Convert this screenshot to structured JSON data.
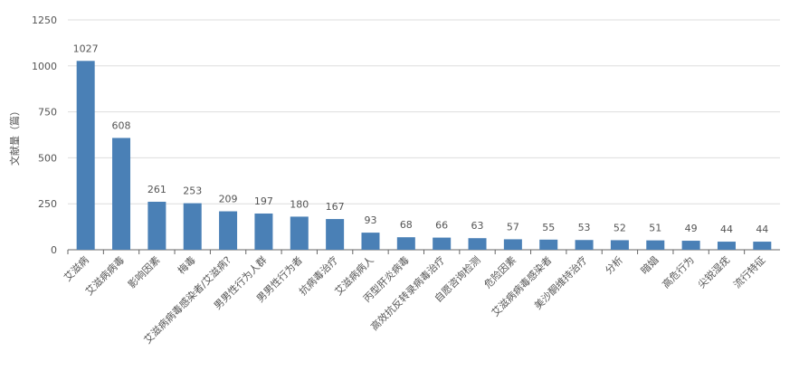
{
  "chart_data": {
    "type": "bar",
    "y_label": "文献量（篇）",
    "categories": [
      "艾滋病",
      "艾滋病病毒",
      "影响因素",
      "梅毒",
      "艾滋病病毒感染者/艾滋病?",
      "男男性行为人群",
      "男男性行为者",
      "抗病毒治疗",
      "艾滋病病人",
      "丙型肝炎病毒",
      "高效抗反转录病毒治疗",
      "自愿咨询检测",
      "危险因素",
      "艾滋病病毒感染者",
      "美沙酮维持治疗",
      "分析",
      "暗娼",
      "高危行为",
      "尖锐湿疣",
      "流行特征"
    ],
    "values": [
      1027,
      608,
      261,
      253,
      209,
      197,
      180,
      167,
      93,
      68,
      66,
      63,
      57,
      55,
      53,
      52,
      51,
      49,
      44,
      44
    ],
    "color": "#4a80b6",
    "ylim": [
      0,
      1250
    ],
    "yticks": [
      0,
      250,
      500,
      750,
      1000,
      1250
    ],
    "grid": true
  }
}
